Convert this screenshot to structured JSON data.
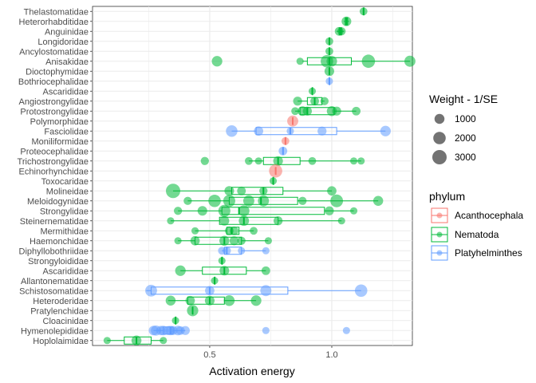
{
  "chart_data": {
    "type": "boxplot-with-points",
    "xlabel": "Activation energy",
    "xlim": [
      0.02,
      1.33
    ],
    "xticks": [
      0.5,
      1.0
    ],
    "xtick_labels": [
      "0.5",
      "1.0"
    ],
    "grid": true,
    "legend_placement": "right",
    "size_legend": {
      "title": "Weight - 1/SE",
      "levels": [
        1000,
        2000,
        3000
      ],
      "labels": [
        "1000",
        "2000",
        "3000"
      ]
    },
    "color_legend": {
      "title": "phylum",
      "entries": [
        {
          "name": "Acanthocephala",
          "color": "#F8766D"
        },
        {
          "name": "Nematoda",
          "color": "#00BA38"
        },
        {
          "name": "Platyhelminthes",
          "color": "#619CFF"
        }
      ]
    },
    "families": [
      {
        "name": "Thelastomatidae",
        "phylum": "Nematoda",
        "box": [
          1.13,
          1.13,
          1.13,
          1.13,
          1.13
        ],
        "points": [
          [
            1.13,
            400
          ]
        ]
      },
      {
        "name": "Heterorhabditidae",
        "phylum": "Nematoda",
        "box": [
          1.05,
          1.055,
          1.06,
          1.065,
          1.07
        ],
        "points": [
          [
            1.06,
            900
          ]
        ]
      },
      {
        "name": "Anguinidae",
        "phylum": "Nematoda",
        "box": [
          1.02,
          1.03,
          1.035,
          1.04,
          1.05
        ],
        "points": [
          [
            1.03,
            600
          ],
          [
            1.04,
            500
          ]
        ]
      },
      {
        "name": "Longidoridae",
        "phylum": "Nematoda",
        "box": [
          0.99,
          0.99,
          0.99,
          0.99,
          0.99
        ],
        "points": [
          [
            0.99,
            400
          ]
        ]
      },
      {
        "name": "Ancylostomatidae",
        "phylum": "Nematoda",
        "box": [
          0.99,
          0.99,
          0.99,
          0.99,
          0.99
        ],
        "points": [
          [
            0.99,
            400
          ]
        ]
      },
      {
        "name": "Anisakidae",
        "phylum": "Nematoda",
        "box": [
          0.88,
          0.9,
          0.99,
          1.08,
          1.32
        ],
        "points": [
          [
            0.53,
            1200
          ],
          [
            0.87,
            300
          ],
          [
            0.98,
            2000
          ],
          [
            1.0,
            1200
          ],
          [
            1.15,
            2400
          ],
          [
            1.32,
            1400
          ]
        ]
      },
      {
        "name": "Dioctophymidae",
        "phylum": "Nematoda",
        "box": [
          0.99,
          0.99,
          0.99,
          0.99,
          0.99
        ],
        "points": [
          [
            0.99,
            900
          ]
        ]
      },
      {
        "name": "Bothriocephalidae",
        "phylum": "Platyhelminthes",
        "box": [
          0.99,
          0.99,
          0.99,
          0.99,
          0.99
        ],
        "points": [
          [
            0.99,
            300
          ]
        ]
      },
      {
        "name": "Ascarididae",
        "phylum": "Nematoda",
        "box": [
          0.92,
          0.92,
          0.92,
          0.92,
          0.92
        ],
        "points": [
          [
            0.92,
            300
          ]
        ]
      },
      {
        "name": "Angiostrongylidae",
        "phylum": "Nematoda",
        "box": [
          0.86,
          0.9,
          0.93,
          0.96,
          0.97
        ],
        "points": [
          [
            0.86,
            700
          ],
          [
            0.93,
            600
          ],
          [
            0.97,
            500
          ]
        ]
      },
      {
        "name": "Protostrongylidae",
        "phylum": "Nematoda",
        "box": [
          0.85,
          0.87,
          0.9,
          1.01,
          1.1
        ],
        "points": [
          [
            0.85,
            400
          ],
          [
            0.88,
            900
          ],
          [
            0.9,
            700
          ],
          [
            1.0,
            1000
          ],
          [
            1.02,
            700
          ],
          [
            1.1,
            600
          ]
        ]
      },
      {
        "name": "Polymorphidae",
        "phylum": "Acanthocephala",
        "box": [
          0.84,
          0.84,
          0.84,
          0.84,
          0.84
        ],
        "points": [
          [
            0.84,
            1400
          ]
        ]
      },
      {
        "name": "Fasciolidae",
        "phylum": "Platyhelminthes",
        "box": [
          0.59,
          0.69,
          0.83,
          1.02,
          1.22
        ],
        "points": [
          [
            0.59,
            1600
          ],
          [
            0.7,
            800
          ],
          [
            0.83,
            300
          ],
          [
            0.96,
            700
          ],
          [
            1.22,
            1200
          ]
        ]
      },
      {
        "name": "Moniliformidae",
        "phylum": "Acanthocephala",
        "box": [
          0.81,
          0.81,
          0.81,
          0.81,
          0.81
        ],
        "points": [
          [
            0.81,
            400
          ]
        ]
      },
      {
        "name": "Proteocephalidae",
        "phylum": "Platyhelminthes",
        "box": [
          0.8,
          0.8,
          0.8,
          0.8,
          0.8
        ],
        "points": [
          [
            0.8,
            600
          ]
        ]
      },
      {
        "name": "Trichostrongylidae",
        "phylum": "Nematoda",
        "box": [
          0.66,
          0.72,
          0.78,
          0.87,
          1.12
        ],
        "points": [
          [
            0.48,
            500
          ],
          [
            0.66,
            400
          ],
          [
            0.7,
            300
          ],
          [
            0.78,
            900
          ],
          [
            0.92,
            400
          ],
          [
            1.09,
            300
          ],
          [
            1.12,
            300
          ]
        ]
      },
      {
        "name": "Echinorhynchidae",
        "phylum": "Acanthocephala",
        "box": [
          0.77,
          0.77,
          0.77,
          0.77,
          0.77
        ],
        "points": [
          [
            0.77,
            2400
          ]
        ]
      },
      {
        "name": "Toxocaridae",
        "phylum": "Nematoda",
        "box": [
          0.76,
          0.76,
          0.76,
          0.76,
          0.76
        ],
        "points": [
          [
            0.76,
            300
          ]
        ]
      },
      {
        "name": "Molineidae",
        "phylum": "Nematoda",
        "box": [
          0.35,
          0.59,
          0.72,
          0.8,
          1.0
        ],
        "points": [
          [
            0.35,
            3000
          ],
          [
            0.58,
            900
          ],
          [
            0.63,
            600
          ],
          [
            0.72,
            500
          ],
          [
            1.0,
            800
          ]
        ]
      },
      {
        "name": "Meloidogynidae",
        "phylum": "Nematoda",
        "box": [
          0.41,
          0.58,
          0.71,
          0.86,
          1.19
        ],
        "points": [
          [
            0.41,
            500
          ],
          [
            0.52,
            2000
          ],
          [
            0.58,
            1800
          ],
          [
            0.66,
            1400
          ],
          [
            0.72,
            1400
          ],
          [
            0.88,
            500
          ],
          [
            1.02,
            2100
          ],
          [
            1.19,
            1000
          ]
        ]
      },
      {
        "name": "Strongylidae",
        "phylum": "Nematoda",
        "box": [
          0.37,
          0.55,
          0.62,
          0.97,
          1.09
        ],
        "points": [
          [
            0.37,
            500
          ],
          [
            0.47,
            900
          ],
          [
            0.56,
            1800
          ],
          [
            0.64,
            1400
          ],
          [
            0.99,
            700
          ],
          [
            1.09,
            300
          ]
        ]
      },
      {
        "name": "Steinernematidae",
        "phylum": "Nematoda",
        "box": [
          0.34,
          0.54,
          0.64,
          0.78,
          1.04
        ],
        "points": [
          [
            0.34,
            300
          ],
          [
            0.56,
            900
          ],
          [
            0.64,
            1100
          ],
          [
            0.78,
            700
          ],
          [
            1.04,
            300
          ]
        ]
      },
      {
        "name": "Mermithidae",
        "phylum": "Nematoda",
        "box": [
          0.44,
          0.57,
          0.59,
          0.62,
          0.68
        ],
        "points": [
          [
            0.44,
            300
          ],
          [
            0.58,
            600
          ],
          [
            0.6,
            600
          ],
          [
            0.68,
            400
          ]
        ]
      },
      {
        "name": "Haemonchidae",
        "phylum": "Nematoda",
        "box": [
          0.37,
          0.44,
          0.56,
          0.63,
          0.74
        ],
        "points": [
          [
            0.37,
            300
          ],
          [
            0.44,
            800
          ],
          [
            0.56,
            1000
          ],
          [
            0.6,
            700
          ],
          [
            0.63,
            500
          ],
          [
            0.74,
            300
          ]
        ]
      },
      {
        "name": "Diphyllobothriidae",
        "phylum": "Platyhelminthes",
        "box": [
          0.55,
          0.56,
          0.57,
          0.63,
          0.73
        ],
        "points": [
          [
            0.55,
            400
          ],
          [
            0.57,
            500
          ],
          [
            0.63,
            300
          ],
          [
            0.73,
            300
          ]
        ]
      },
      {
        "name": "Strongyloididae",
        "phylum": "Nematoda",
        "box": [
          0.55,
          0.55,
          0.55,
          0.55,
          0.55
        ],
        "points": [
          [
            0.55,
            300
          ]
        ]
      },
      {
        "name": "Ascarididae",
        "phylum": "Nematoda",
        "box": [
          0.38,
          0.47,
          0.56,
          0.65,
          0.73
        ],
        "points": [
          [
            0.38,
            1200
          ],
          [
            0.56,
            900
          ],
          [
            0.73,
            600
          ]
        ]
      },
      {
        "name": "Allantonematidae",
        "phylum": "Nematoda",
        "box": [
          0.52,
          0.52,
          0.52,
          0.52,
          0.52
        ],
        "points": [
          [
            0.52,
            300
          ]
        ]
      },
      {
        "name": "Schistosomatidae",
        "phylum": "Platyhelminthes",
        "box": [
          0.24,
          0.26,
          0.5,
          0.82,
          1.12
        ],
        "points": [
          [
            0.26,
            1700
          ],
          [
            0.5,
            800
          ],
          [
            0.73,
            1400
          ],
          [
            1.12,
            2000
          ]
        ]
      },
      {
        "name": "Heteroderidae",
        "phylum": "Nematoda",
        "box": [
          0.33,
          0.41,
          0.5,
          0.56,
          0.69
        ],
        "points": [
          [
            0.34,
            1000
          ],
          [
            0.42,
            800
          ],
          [
            0.5,
            900
          ],
          [
            0.58,
            1300
          ],
          [
            0.69,
            1200
          ]
        ]
      },
      {
        "name": "Pratylenchidae",
        "phylum": "Nematoda",
        "box": [
          0.43,
          0.43,
          0.43,
          0.43,
          0.43
        ],
        "points": [
          [
            0.43,
            1500
          ]
        ]
      },
      {
        "name": "Cloacinidae",
        "phylum": "Nematoda",
        "box": [
          0.36,
          0.36,
          0.36,
          0.36,
          0.36
        ],
        "points": [
          [
            0.36,
            300
          ]
        ]
      },
      {
        "name": "Hymenolepididae",
        "phylum": "Platyhelminthes",
        "box": [
          0.27,
          0.31,
          0.34,
          0.35,
          0.4
        ],
        "points": [
          [
            0.27,
            900
          ],
          [
            0.28,
            1100
          ],
          [
            0.3,
            800
          ],
          [
            0.31,
            900
          ],
          [
            0.33,
            700
          ],
          [
            0.34,
            800
          ],
          [
            0.35,
            700
          ],
          [
            0.37,
            900
          ],
          [
            0.38,
            600
          ],
          [
            0.4,
            700
          ],
          [
            0.73,
            300
          ],
          [
            1.06,
            300
          ]
        ]
      },
      {
        "name": "Hoplolaimidae",
        "phylum": "Nematoda",
        "box": [
          0.08,
          0.15,
          0.2,
          0.26,
          0.31
        ],
        "points": [
          [
            0.08,
            300
          ],
          [
            0.2,
            1000
          ],
          [
            0.31,
            300
          ]
        ]
      }
    ]
  }
}
